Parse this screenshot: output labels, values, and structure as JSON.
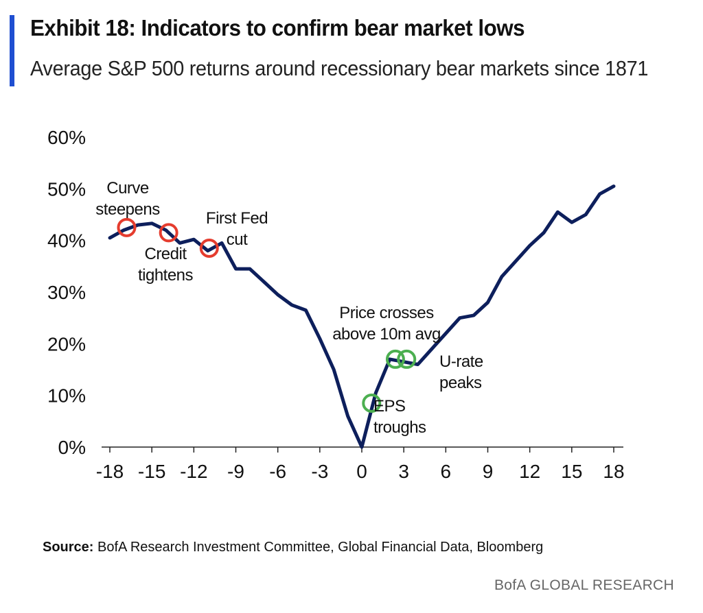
{
  "header": {
    "title": "Exhibit 18: Indicators to confirm bear market lows",
    "subtitle": "Average S&P 500 returns around recessionary bear markets since 1871"
  },
  "footer": {
    "source_label": "Source:",
    "source_text": "BofA Research Investment Committee, Global Financial Data, Bloomberg",
    "brand": "BofA GLOBAL RESEARCH"
  },
  "colors": {
    "accent": "#1f4fd1",
    "line": "#0d1f5c",
    "red_marker": "#e53c2e",
    "green_marker": "#4caf50"
  },
  "chart_data": {
    "type": "line",
    "xlim": [
      -18,
      18
    ],
    "ylim": [
      0,
      60
    ],
    "x_ticks": [
      -18,
      -15,
      -12,
      -9,
      -6,
      -3,
      0,
      3,
      6,
      9,
      12,
      15,
      18
    ],
    "x_tick_labels": [
      "-18",
      "-15",
      "-12",
      "-9",
      "-6",
      "-3",
      "0",
      "3",
      "6",
      "9",
      "12",
      "15",
      "18"
    ],
    "y_ticks": [
      0,
      10,
      20,
      30,
      40,
      50,
      60
    ],
    "y_tick_labels": [
      "0%",
      "10%",
      "20%",
      "30%",
      "40%",
      "50%",
      "60%"
    ],
    "grid": false,
    "series": [
      {
        "x": [
          -18,
          -17,
          -16,
          -15,
          -14,
          -13,
          -12,
          -11,
          -10,
          -9,
          -8,
          -7,
          -6,
          -5,
          -4,
          -3,
          -2,
          -1,
          0,
          1,
          2,
          3,
          4,
          5,
          6,
          7,
          8,
          9,
          10,
          11,
          12,
          13,
          14,
          15,
          16,
          17,
          18
        ],
        "y": [
          40.5,
          42,
          43,
          43.3,
          42,
          39.5,
          40.2,
          38,
          39.5,
          34.5,
          34.5,
          32,
          29.5,
          27.5,
          26.5,
          21,
          15,
          6,
          0,
          10.5,
          17,
          16.5,
          16,
          19,
          22,
          25,
          25.5,
          28,
          33,
          36,
          39,
          41.5,
          45.5,
          43.5,
          45,
          49,
          50.5
        ]
      }
    ],
    "annotations": [
      {
        "label_lines": [
          "Curve",
          "steepens"
        ],
        "x": -16.8,
        "y": 42.5,
        "marker": "red"
      },
      {
        "label_lines": [
          "Credit",
          "tightens"
        ],
        "x": -13.8,
        "y": 41.5,
        "marker": "red"
      },
      {
        "label_lines": [
          "First Fed",
          "cut"
        ],
        "x": -10.9,
        "y": 38.5,
        "marker": "red"
      },
      {
        "label_lines": [
          "EPS",
          "troughs"
        ],
        "x": 0.7,
        "y": 8.5,
        "marker": "green"
      },
      {
        "label_lines": [
          "Price crosses",
          "above 10m avg"
        ],
        "x": 2.4,
        "y": 17,
        "marker": "green"
      },
      {
        "label_lines": [
          "U-rate",
          "peaks"
        ],
        "x": 3.2,
        "y": 17,
        "marker": "green"
      }
    ]
  }
}
